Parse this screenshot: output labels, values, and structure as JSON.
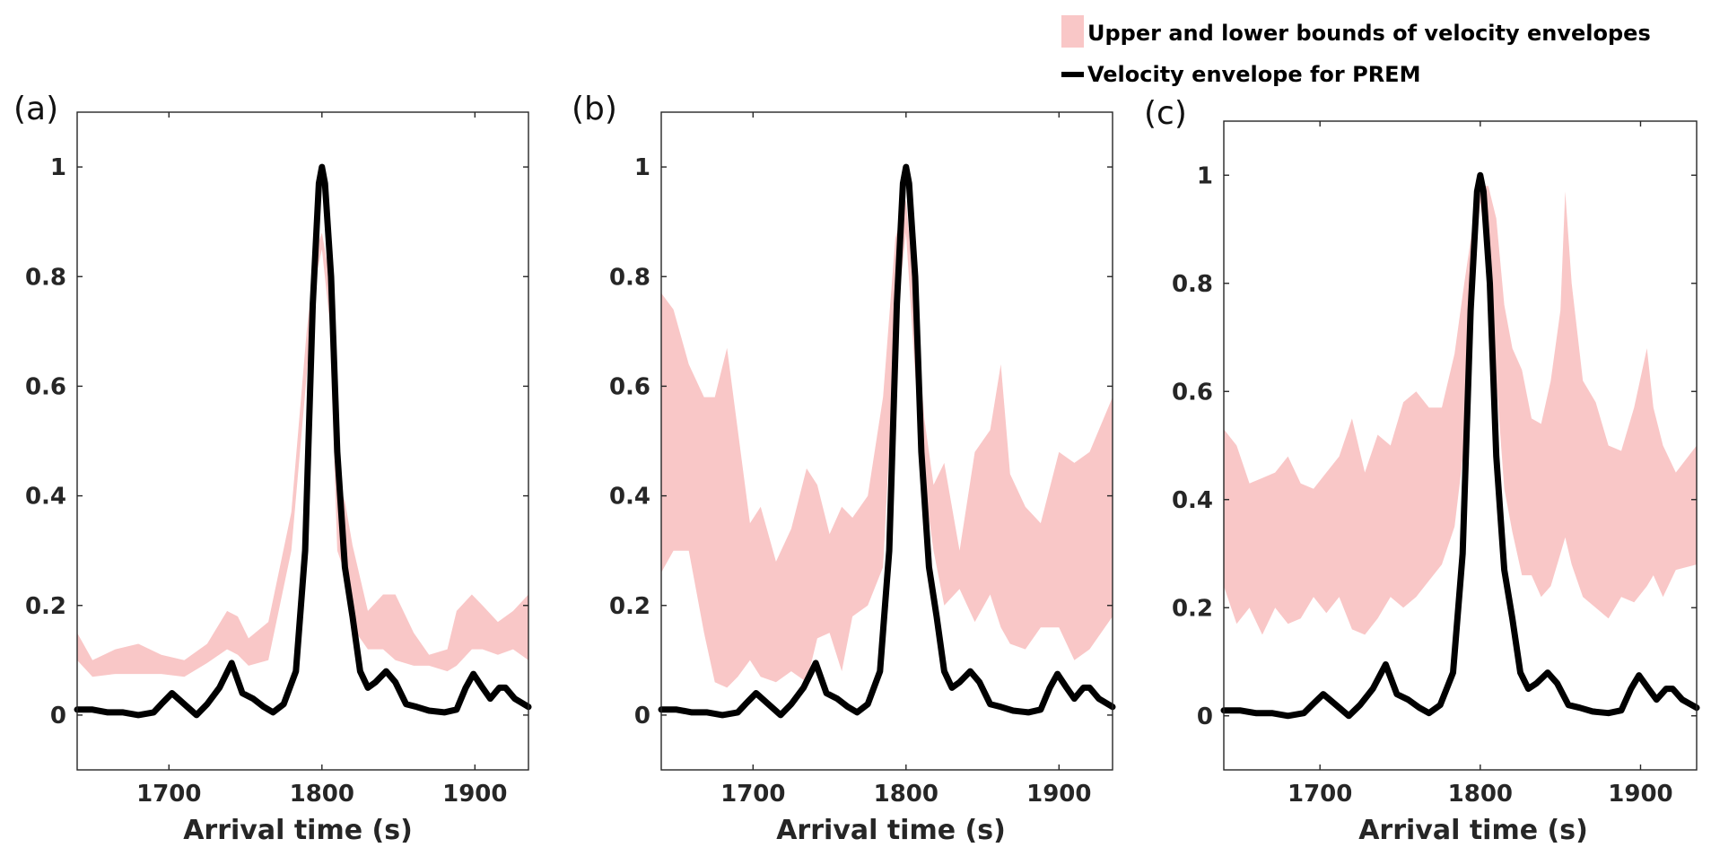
{
  "legend": {
    "items": [
      {
        "label": "Upper and lower bounds of velocity envelopes",
        "color": "#f9c7c7",
        "kind": "band"
      },
      {
        "label": "Velocity envelope for PREM",
        "color": "#000000",
        "kind": "line"
      }
    ]
  },
  "chart_data": [
    {
      "panel_label": "(a)",
      "type": "area",
      "xlabel": "Arrival time (s)",
      "ylabel": "",
      "xlim": [
        1640,
        1935
      ],
      "ylim": [
        -0.1,
        1.1
      ],
      "xticks": [
        1700,
        1800,
        1900
      ],
      "yticks": [
        0,
        0.2,
        0.4,
        0.6,
        0.8,
        1
      ],
      "ytick_labels": [
        "0",
        "0.2",
        "0.4",
        "0.6",
        "0.8",
        "1"
      ],
      "series": [
        {
          "name": "Upper and lower bounds of velocity envelopes",
          "kind": "band",
          "x": [
            1640,
            1650,
            1665,
            1680,
            1695,
            1710,
            1725,
            1738,
            1745,
            1752,
            1765,
            1780,
            1790,
            1796,
            1800,
            1805,
            1810,
            1815,
            1820,
            1830,
            1840,
            1848,
            1860,
            1870,
            1882,
            1888,
            1898,
            1905,
            1915,
            1925,
            1935
          ],
          "lower": [
            0.1,
            0.07,
            0.075,
            0.075,
            0.075,
            0.07,
            0.095,
            0.12,
            0.11,
            0.09,
            0.1,
            0.3,
            0.62,
            0.8,
            0.85,
            0.72,
            0.3,
            0.26,
            0.16,
            0.12,
            0.12,
            0.1,
            0.09,
            0.09,
            0.08,
            0.09,
            0.12,
            0.12,
            0.11,
            0.12,
            0.1
          ],
          "upper": [
            0.15,
            0.1,
            0.12,
            0.13,
            0.11,
            0.1,
            0.13,
            0.19,
            0.18,
            0.14,
            0.17,
            0.37,
            0.7,
            0.85,
            0.88,
            0.8,
            0.43,
            0.39,
            0.31,
            0.19,
            0.22,
            0.22,
            0.15,
            0.11,
            0.12,
            0.19,
            0.22,
            0.2,
            0.17,
            0.19,
            0.22
          ]
        },
        {
          "name": "Velocity envelope for PREM",
          "kind": "line",
          "x": [
            1640,
            1650,
            1660,
            1670,
            1680,
            1690,
            1695,
            1702,
            1710,
            1718,
            1725,
            1733,
            1741,
            1748,
            1755,
            1762,
            1768,
            1775,
            1783,
            1789,
            1794,
            1798,
            1800,
            1802,
            1806,
            1810,
            1815,
            1820,
            1825,
            1830,
            1835,
            1842,
            1848,
            1855,
            1862,
            1870,
            1880,
            1888,
            1894,
            1899,
            1905,
            1910,
            1916,
            1920,
            1926,
            1935
          ],
          "y": [
            0.01,
            0.01,
            0.005,
            0.005,
            0.0,
            0.005,
            0.02,
            0.04,
            0.02,
            0.0,
            0.02,
            0.05,
            0.095,
            0.04,
            0.03,
            0.015,
            0.005,
            0.02,
            0.08,
            0.3,
            0.75,
            0.97,
            1.0,
            0.97,
            0.8,
            0.48,
            0.27,
            0.18,
            0.08,
            0.05,
            0.06,
            0.08,
            0.06,
            0.02,
            0.015,
            0.008,
            0.005,
            0.01,
            0.05,
            0.075,
            0.05,
            0.03,
            0.05,
            0.05,
            0.03,
            0.015
          ]
        }
      ]
    },
    {
      "panel_label": "(b)",
      "type": "area",
      "xlabel": "Arrival time (s)",
      "ylabel": "",
      "xlim": [
        1640,
        1935
      ],
      "ylim": [
        -0.1,
        1.1
      ],
      "xticks": [
        1700,
        1800,
        1900
      ],
      "yticks": [
        0,
        0.2,
        0.4,
        0.6,
        0.8,
        1
      ],
      "ytick_labels": [
        "0",
        "0.2",
        "0.4",
        "0.6",
        "0.8",
        "1"
      ],
      "series": [
        {
          "name": "Upper and lower bounds of velocity envelopes",
          "kind": "band",
          "x": [
            1640,
            1648,
            1658,
            1668,
            1675,
            1683,
            1690,
            1698,
            1705,
            1715,
            1725,
            1735,
            1742,
            1750,
            1758,
            1765,
            1775,
            1785,
            1793,
            1800,
            1806,
            1812,
            1818,
            1825,
            1835,
            1845,
            1855,
            1862,
            1868,
            1878,
            1888,
            1900,
            1910,
            1920,
            1935
          ],
          "lower": [
            0.26,
            0.3,
            0.3,
            0.15,
            0.06,
            0.05,
            0.07,
            0.1,
            0.07,
            0.06,
            0.08,
            0.06,
            0.14,
            0.15,
            0.08,
            0.18,
            0.2,
            0.27,
            0.7,
            0.88,
            0.62,
            0.42,
            0.3,
            0.2,
            0.23,
            0.17,
            0.22,
            0.16,
            0.13,
            0.12,
            0.16,
            0.16,
            0.1,
            0.12,
            0.18
          ],
          "upper": [
            0.77,
            0.74,
            0.64,
            0.58,
            0.58,
            0.67,
            0.52,
            0.35,
            0.38,
            0.28,
            0.34,
            0.45,
            0.42,
            0.33,
            0.38,
            0.36,
            0.4,
            0.58,
            0.87,
            0.94,
            0.75,
            0.54,
            0.42,
            0.46,
            0.3,
            0.48,
            0.52,
            0.64,
            0.44,
            0.38,
            0.35,
            0.48,
            0.46,
            0.48,
            0.58
          ]
        },
        {
          "name": "Velocity envelope for PREM",
          "kind": "line",
          "x": [
            1640,
            1650,
            1660,
            1670,
            1680,
            1690,
            1695,
            1702,
            1710,
            1718,
            1725,
            1733,
            1741,
            1748,
            1755,
            1762,
            1768,
            1775,
            1783,
            1789,
            1794,
            1798,
            1800,
            1802,
            1806,
            1810,
            1815,
            1820,
            1825,
            1830,
            1835,
            1842,
            1848,
            1855,
            1862,
            1870,
            1880,
            1888,
            1894,
            1899,
            1905,
            1910,
            1916,
            1920,
            1926,
            1935
          ],
          "y": [
            0.01,
            0.01,
            0.005,
            0.005,
            0.0,
            0.005,
            0.02,
            0.04,
            0.02,
            0.0,
            0.02,
            0.05,
            0.095,
            0.04,
            0.03,
            0.015,
            0.005,
            0.02,
            0.08,
            0.3,
            0.75,
            0.97,
            1.0,
            0.97,
            0.8,
            0.48,
            0.27,
            0.18,
            0.08,
            0.05,
            0.06,
            0.08,
            0.06,
            0.02,
            0.015,
            0.008,
            0.005,
            0.01,
            0.05,
            0.075,
            0.05,
            0.03,
            0.05,
            0.05,
            0.03,
            0.015
          ]
        }
      ]
    },
    {
      "panel_label": "(c)",
      "type": "area",
      "xlabel": "Arrival time (s)",
      "ylabel": "",
      "xlim": [
        1640,
        1935
      ],
      "ylim": [
        -0.1,
        1.1
      ],
      "xticks": [
        1700,
        1800,
        1900
      ],
      "yticks": [
        0,
        0.2,
        0.4,
        0.6,
        0.8,
        1
      ],
      "ytick_labels": [
        "0",
        "0.2",
        "0.4",
        "0.6",
        "0.8",
        "1"
      ],
      "series": [
        {
          "name": "Upper and lower bounds of velocity envelopes",
          "kind": "band",
          "x": [
            1640,
            1648,
            1656,
            1664,
            1672,
            1680,
            1688,
            1696,
            1704,
            1712,
            1720,
            1728,
            1736,
            1744,
            1752,
            1760,
            1768,
            1776,
            1784,
            1790,
            1795,
            1800,
            1805,
            1810,
            1815,
            1820,
            1826,
            1832,
            1838,
            1844,
            1850,
            1853,
            1857,
            1864,
            1872,
            1880,
            1888,
            1896,
            1904,
            1908,
            1914,
            1922,
            1935
          ],
          "lower": [
            0.24,
            0.17,
            0.2,
            0.15,
            0.2,
            0.17,
            0.18,
            0.22,
            0.19,
            0.22,
            0.16,
            0.15,
            0.18,
            0.22,
            0.2,
            0.22,
            0.25,
            0.28,
            0.35,
            0.5,
            0.78,
            0.95,
            0.84,
            0.62,
            0.42,
            0.34,
            0.26,
            0.26,
            0.22,
            0.24,
            0.3,
            0.33,
            0.28,
            0.22,
            0.2,
            0.18,
            0.22,
            0.21,
            0.24,
            0.26,
            0.22,
            0.27,
            0.28
          ],
          "upper": [
            0.53,
            0.5,
            0.43,
            0.44,
            0.45,
            0.48,
            0.43,
            0.42,
            0.45,
            0.48,
            0.55,
            0.45,
            0.52,
            0.5,
            0.58,
            0.6,
            0.57,
            0.57,
            0.67,
            0.8,
            0.9,
            0.98,
            0.98,
            0.92,
            0.76,
            0.68,
            0.64,
            0.55,
            0.54,
            0.62,
            0.75,
            0.97,
            0.8,
            0.62,
            0.58,
            0.5,
            0.49,
            0.57,
            0.68,
            0.57,
            0.5,
            0.45,
            0.5
          ]
        },
        {
          "name": "Velocity envelope for PREM",
          "kind": "line",
          "x": [
            1640,
            1650,
            1660,
            1670,
            1680,
            1690,
            1695,
            1702,
            1710,
            1718,
            1725,
            1733,
            1741,
            1748,
            1755,
            1762,
            1768,
            1775,
            1783,
            1789,
            1794,
            1798,
            1800,
            1802,
            1806,
            1810,
            1815,
            1820,
            1825,
            1830,
            1835,
            1842,
            1848,
            1855,
            1862,
            1870,
            1880,
            1888,
            1894,
            1899,
            1905,
            1910,
            1916,
            1920,
            1926,
            1935
          ],
          "y": [
            0.01,
            0.01,
            0.005,
            0.005,
            0.0,
            0.005,
            0.02,
            0.04,
            0.02,
            0.0,
            0.02,
            0.05,
            0.095,
            0.04,
            0.03,
            0.015,
            0.005,
            0.02,
            0.08,
            0.3,
            0.75,
            0.97,
            1.0,
            0.97,
            0.8,
            0.48,
            0.27,
            0.18,
            0.08,
            0.05,
            0.06,
            0.08,
            0.06,
            0.02,
            0.015,
            0.008,
            0.005,
            0.01,
            0.05,
            0.075,
            0.05,
            0.03,
            0.05,
            0.05,
            0.03,
            0.015
          ]
        }
      ]
    }
  ]
}
